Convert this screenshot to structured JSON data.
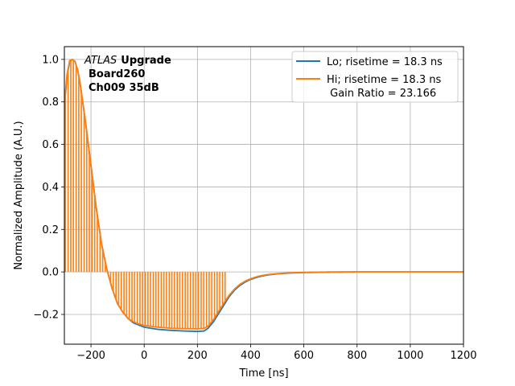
{
  "chart_data": {
    "type": "line",
    "xlabel": "Time [ns]",
    "ylabel": "Normalized Amplitude (A.U.)",
    "xlim": [
      -300,
      1200
    ],
    "ylim": [
      -0.34,
      1.06
    ],
    "xticks": [
      -200,
      0,
      200,
      400,
      600,
      800,
      1000,
      1200
    ],
    "xtick_labels": [
      "−200",
      "0",
      "200",
      "400",
      "600",
      "800",
      "1000",
      "1200"
    ],
    "yticks": [
      -0.2,
      0.0,
      0.2,
      0.4,
      0.6,
      0.8,
      1.0
    ],
    "ytick_labels": [
      "−0.2",
      "0.0",
      "0.2",
      "0.4",
      "0.6",
      "0.8",
      "1.0"
    ],
    "grid": true,
    "legend_position": "top-right",
    "annotation": {
      "italic": "ATLAS",
      "bold": "Upgrade",
      "line2": "Board260",
      "line3": "Ch009 35dB"
    },
    "series": [
      {
        "name": "Lo; risetime = 18.3 ns",
        "color": "#1f77b4",
        "style": "line",
        "x": [
          -300,
          -290,
          -280,
          -270,
          -260,
          -250,
          -240,
          -220,
          -200,
          -180,
          -160,
          -140,
          -120,
          -100,
          -80,
          -60,
          -40,
          -20,
          0,
          50,
          100,
          150,
          200,
          225,
          240,
          260,
          280,
          300,
          320,
          340,
          360,
          380,
          400,
          430,
          460,
          500,
          550,
          600,
          650,
          700,
          800,
          900,
          1000,
          1100,
          1200
        ],
        "y": [
          0.78,
          0.92,
          0.99,
          1.0,
          0.99,
          0.95,
          0.88,
          0.7,
          0.5,
          0.3,
          0.13,
          0.01,
          -0.08,
          -0.15,
          -0.19,
          -0.22,
          -0.24,
          -0.25,
          -0.26,
          -0.27,
          -0.275,
          -0.278,
          -0.28,
          -0.278,
          -0.265,
          -0.235,
          -0.195,
          -0.155,
          -0.115,
          -0.085,
          -0.063,
          -0.047,
          -0.035,
          -0.023,
          -0.015,
          -0.009,
          -0.005,
          -0.003,
          -0.002,
          -0.001,
          0.0,
          0.0,
          0.0,
          0.0,
          0.0
        ]
      },
      {
        "name": "Hi; risetime = 18.3 ns\n Gain Ratio = 23.166",
        "color": "#ff7f0e",
        "style": "line-with-spikes-to-zero",
        "x": [
          -300,
          -290,
          -280,
          -270,
          -260,
          -250,
          -240,
          -220,
          -200,
          -180,
          -160,
          -140,
          -120,
          -100,
          -80,
          -60,
          -40,
          -20,
          0,
          50,
          100,
          150,
          200,
          225,
          240,
          260,
          280,
          300,
          320,
          340,
          360,
          380,
          400,
          430,
          460,
          500,
          550,
          600,
          650,
          700,
          800,
          900,
          1000,
          1100,
          1200
        ],
        "y": [
          0.79,
          0.93,
          0.995,
          1.0,
          0.99,
          0.95,
          0.88,
          0.7,
          0.5,
          0.3,
          0.13,
          0.01,
          -0.08,
          -0.15,
          -0.19,
          -0.22,
          -0.235,
          -0.245,
          -0.252,
          -0.26,
          -0.265,
          -0.267,
          -0.268,
          -0.266,
          -0.255,
          -0.225,
          -0.185,
          -0.145,
          -0.108,
          -0.08,
          -0.058,
          -0.043,
          -0.032,
          -0.02,
          -0.013,
          -0.008,
          -0.004,
          -0.002,
          -0.001,
          0.0,
          0.0,
          0.0,
          0.0,
          0.0,
          0.0
        ]
      }
    ]
  }
}
